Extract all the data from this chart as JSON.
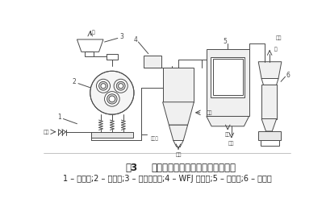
{
  "title_label": "图3",
  "title_text": "振动磨与超细分级机闭路粉碎工艺",
  "caption": "1 – 混合器;2 – 振动磨;3 – 螺旋加料器;4 – WFJ 分级机;5 – 捕集器;6 – 引风机",
  "bg_color": "#ffffff",
  "lc": "#4a4a4a",
  "title_fontsize": 8.5,
  "caption_fontsize": 7.0,
  "label_fs": 5.5
}
